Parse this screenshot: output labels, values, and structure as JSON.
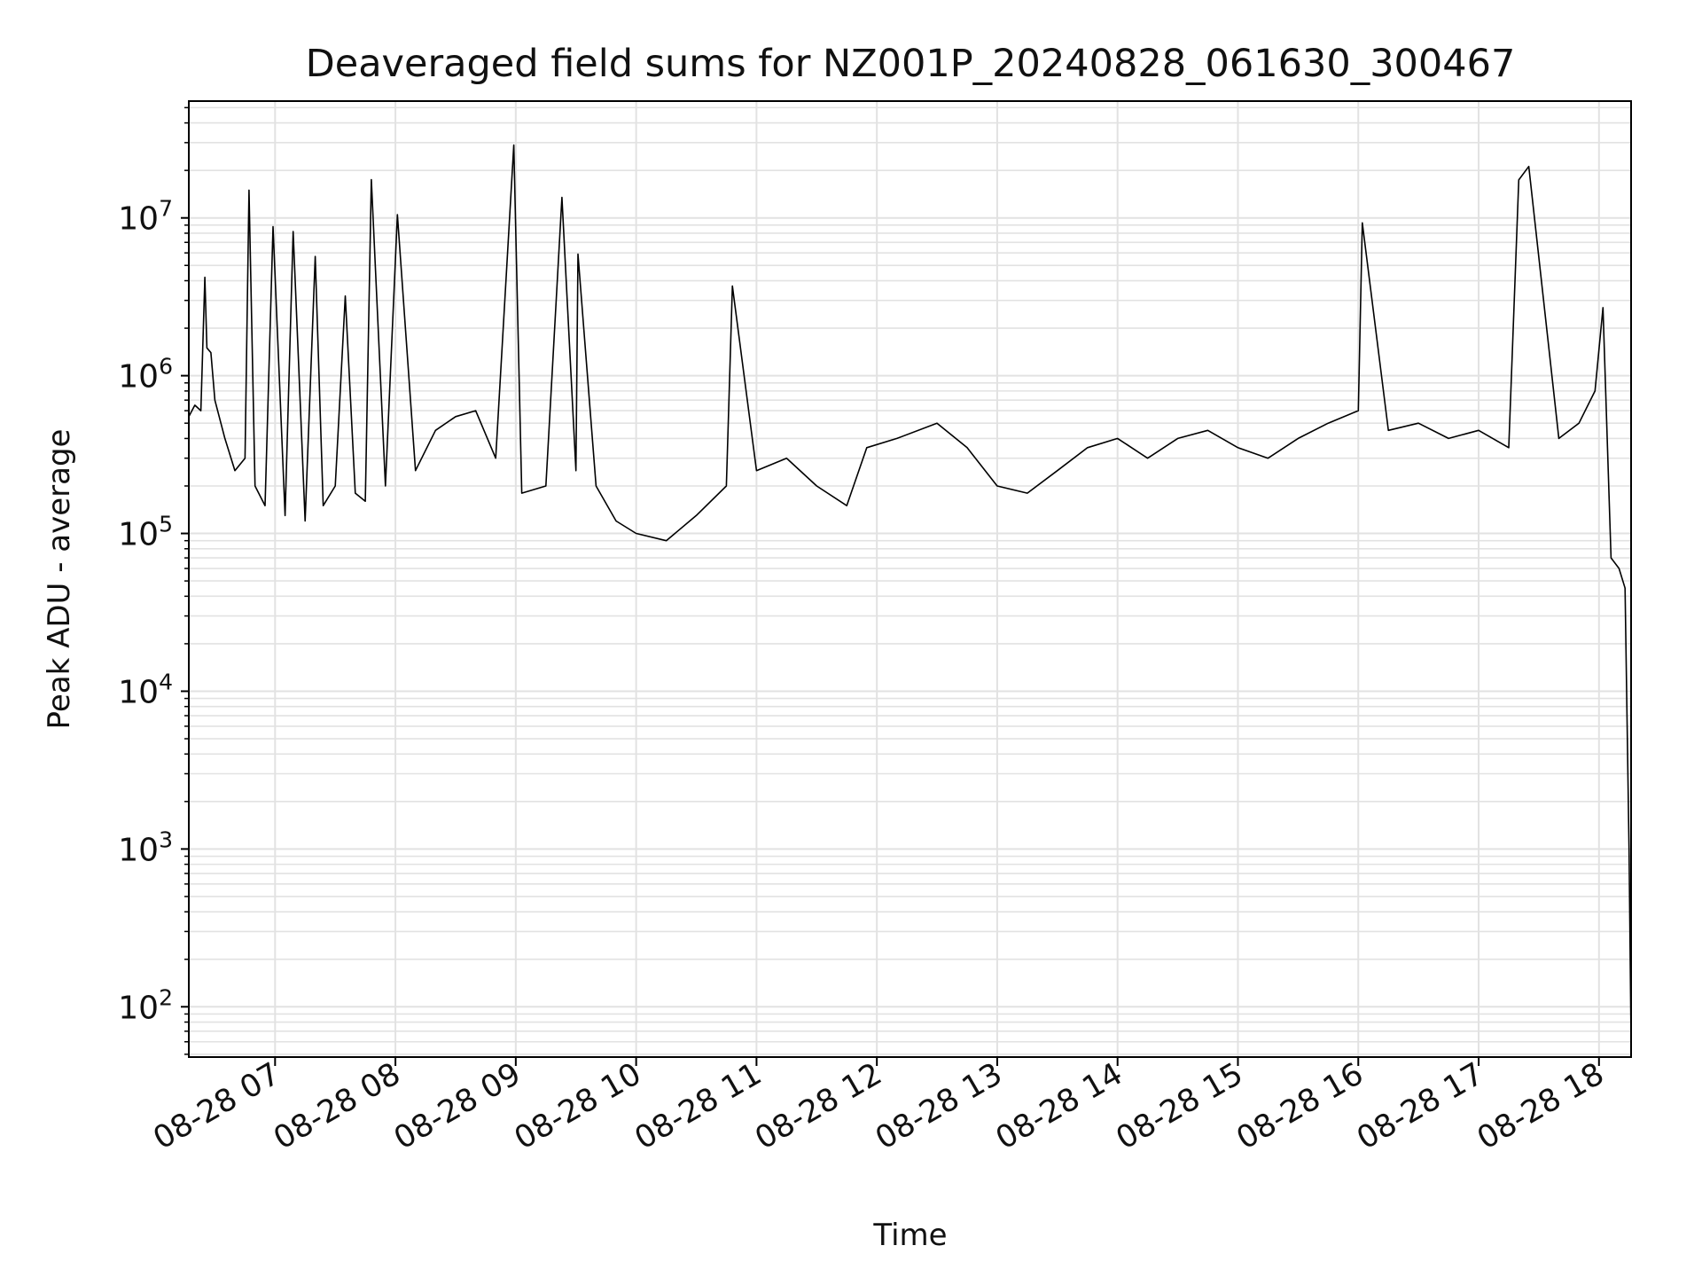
{
  "chart_data": {
    "type": "line",
    "title": "Deaveraged field sums for NZ001P_20240828_061630_300467",
    "xlabel": "Time",
    "ylabel": "Peak ADU - average",
    "yscale": "log",
    "ylim": [
      48,
      55000000
    ],
    "xlim": [
      "08-28 06:17",
      "08-28 18:16"
    ],
    "grid": true,
    "x_ticks": [
      "08-28 07",
      "08-28 08",
      "08-28 09",
      "08-28 10",
      "08-28 11",
      "08-28 12",
      "08-28 13",
      "08-28 14",
      "08-28 15",
      "08-28 16",
      "08-28 17",
      "08-28 18"
    ],
    "y_ticks": [
      {
        "value": 100,
        "base": "10",
        "exp": "2"
      },
      {
        "value": 1000,
        "base": "10",
        "exp": "3"
      },
      {
        "value": 10000,
        "base": "10",
        "exp": "4"
      },
      {
        "value": 100000,
        "base": "10",
        "exp": "5"
      },
      {
        "value": 1000000,
        "base": "10",
        "exp": "6"
      },
      {
        "value": 10000000,
        "base": "10",
        "exp": "7"
      }
    ],
    "series": [
      {
        "color": "#000000",
        "x": [
          "08-28 06:17",
          "08-28 06:20",
          "08-28 06:23",
          "08-28 06:25",
          "08-28 06:26",
          "08-28 06:28",
          "08-28 06:30",
          "08-28 06:35",
          "08-28 06:40",
          "08-28 06:45",
          "08-28 06:47",
          "08-28 06:50",
          "08-28 06:55",
          "08-28 06:59",
          "08-28 07:05",
          "08-28 07:09",
          "08-28 07:15",
          "08-28 07:20",
          "08-28 07:24",
          "08-28 07:30",
          "08-28 07:35",
          "08-28 07:40",
          "08-28 07:45",
          "08-28 07:48",
          "08-28 07:55",
          "08-28 08:01",
          "08-28 08:10",
          "08-28 08:20",
          "08-28 08:30",
          "08-28 08:40",
          "08-28 08:50",
          "08-28 08:59",
          "08-28 09:03",
          "08-28 09:15",
          "08-28 09:23",
          "08-28 09:30",
          "08-28 09:31",
          "08-28 09:40",
          "08-28 09:50",
          "08-28 10:00",
          "08-28 10:15",
          "08-28 10:30",
          "08-28 10:45",
          "08-28 10:48",
          "08-28 11:00",
          "08-28 11:15",
          "08-28 11:30",
          "08-28 11:45",
          "08-28 11:55",
          "08-28 12:10",
          "08-28 12:30",
          "08-28 12:45",
          "08-28 13:00",
          "08-28 13:15",
          "08-28 13:30",
          "08-28 13:45",
          "08-28 14:00",
          "08-28 14:15",
          "08-28 14:30",
          "08-28 14:45",
          "08-28 15:00",
          "08-28 15:15",
          "08-28 15:30",
          "08-28 15:45",
          "08-28 16:00",
          "08-28 16:02",
          "08-28 16:15",
          "08-28 16:30",
          "08-28 16:45",
          "08-28 17:00",
          "08-28 17:15",
          "08-28 17:20",
          "08-28 17:25",
          "08-28 17:40",
          "08-28 17:50",
          "08-28 17:58",
          "08-28 18:02",
          "08-28 18:06",
          "08-28 18:10",
          "08-28 18:13",
          "08-28 18:15",
          "08-28 18:16"
        ],
        "y": [
          550000,
          650000,
          600000,
          4200000,
          1500000,
          1400000,
          700000,
          400000,
          250000,
          300000,
          15000000,
          200000,
          150000,
          8800000,
          130000,
          8200000,
          120000,
          5700000,
          150000,
          200000,
          3200000,
          180000,
          160000,
          17500000,
          200000,
          10500000,
          250000,
          450000,
          550000,
          600000,
          300000,
          29000000,
          180000,
          200000,
          13500000,
          250000,
          5900000,
          200000,
          120000,
          100000,
          90000,
          130000,
          200000,
          3700000,
          250000,
          300000,
          200000,
          150000,
          350000,
          400000,
          500000,
          350000,
          200000,
          180000,
          250000,
          350000,
          400000,
          300000,
          400000,
          450000,
          350000,
          300000,
          400000,
          500000,
          600000,
          9300000,
          450000,
          500000,
          400000,
          450000,
          350000,
          17400000,
          21200000,
          400000,
          500000,
          800000,
          2700000,
          70000,
          60000,
          45000,
          1000,
          60
        ]
      }
    ]
  }
}
